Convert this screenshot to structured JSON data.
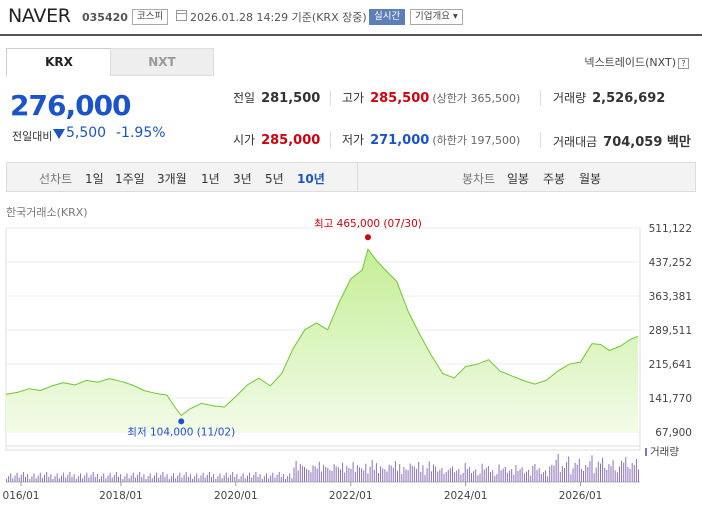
{
  "header": {
    "name": "NAVER",
    "code": "035420",
    "market_badge": "코스피",
    "datetime": "2026.01.28 14:29 기준(KRX 장중)",
    "live_badge": "실시간",
    "corp_badge": "기업개요"
  },
  "tabs": [
    {
      "label": "KRX",
      "active": true
    },
    {
      "label": "NXT",
      "active": false
    }
  ],
  "nxt_link": "넥스트레이드(NXT)",
  "quote": {
    "price": "276,000",
    "change_label": "전일대비",
    "change": "5,500",
    "change_pct": "-1.95%",
    "direction": "down"
  },
  "stats": {
    "prev_close": {
      "label": "전일",
      "value": "281,500"
    },
    "high": {
      "label": "고가",
      "value": "285,500",
      "sub": "(상한가 365,500)"
    },
    "volume": {
      "label": "거래량",
      "value": "2,526,692"
    },
    "open": {
      "label": "시가",
      "value": "285,000"
    },
    "low": {
      "label": "저가",
      "value": "271,000",
      "sub": "(하한가 197,500)"
    },
    "amount": {
      "label": "거래대금",
      "value": "704,059 백만"
    }
  },
  "toolbar": {
    "line_label": "선차트",
    "periods": [
      "1일",
      "1주일",
      "3개월",
      "1년",
      "3년",
      "5년",
      "10년"
    ],
    "selected_period": "10년",
    "candle_label": "봉차트",
    "candle_periods": [
      "일봉",
      "주봉",
      "월봉"
    ]
  },
  "exchange_label": "한국거래소(KRX)",
  "chart_data": {
    "type": "area",
    "y_ticks": [
      "511,122",
      "437,252",
      "363,381",
      "289,511",
      "215,641",
      "141,770",
      "67,900"
    ],
    "y_range": [
      67900,
      511122
    ],
    "x_ticks": [
      "016/01",
      "2018/01",
      "2020/01",
      "2022/01",
      "2024/01",
      "2026/01"
    ],
    "volume_label": "거래량",
    "high_annotation": {
      "label": "최고 465,000 (07/30)",
      "value": 465000
    },
    "low_annotation": {
      "label": "최저 104,000 (11/02)",
      "value": 104000
    },
    "colors": {
      "line": "#6dc92f",
      "fill_top": "#c4ee96",
      "fill_bottom": "#f2fbe8",
      "volume": "#8b72b8",
      "high": "#d1000e",
      "low": "#1a54c8"
    },
    "series": [
      {
        "t": 0.0,
        "v": 150000
      },
      {
        "t": 0.2,
        "v": 154000
      },
      {
        "t": 0.4,
        "v": 162000
      },
      {
        "t": 0.6,
        "v": 158000
      },
      {
        "t": 0.8,
        "v": 168000
      },
      {
        "t": 1.0,
        "v": 175000
      },
      {
        "t": 1.2,
        "v": 170000
      },
      {
        "t": 1.4,
        "v": 180000
      },
      {
        "t": 1.6,
        "v": 176000
      },
      {
        "t": 1.8,
        "v": 184000
      },
      {
        "t": 2.0,
        "v": 178000
      },
      {
        "t": 2.2,
        "v": 170000
      },
      {
        "t": 2.4,
        "v": 158000
      },
      {
        "t": 2.6,
        "v": 152000
      },
      {
        "t": 2.8,
        "v": 148000
      },
      {
        "t": 2.95,
        "v": 120000
      },
      {
        "t": 3.05,
        "v": 104000
      },
      {
        "t": 3.2,
        "v": 118000
      },
      {
        "t": 3.4,
        "v": 130000
      },
      {
        "t": 3.6,
        "v": 125000
      },
      {
        "t": 3.8,
        "v": 122000
      },
      {
        "t": 4.0,
        "v": 145000
      },
      {
        "t": 4.2,
        "v": 170000
      },
      {
        "t": 4.4,
        "v": 185000
      },
      {
        "t": 4.6,
        "v": 168000
      },
      {
        "t": 4.8,
        "v": 195000
      },
      {
        "t": 5.0,
        "v": 250000
      },
      {
        "t": 5.2,
        "v": 290000
      },
      {
        "t": 5.4,
        "v": 305000
      },
      {
        "t": 5.6,
        "v": 290000
      },
      {
        "t": 5.8,
        "v": 350000
      },
      {
        "t": 6.0,
        "v": 400000
      },
      {
        "t": 6.2,
        "v": 420000
      },
      {
        "t": 6.3,
        "v": 465000
      },
      {
        "t": 6.45,
        "v": 440000
      },
      {
        "t": 6.6,
        "v": 420000
      },
      {
        "t": 6.8,
        "v": 395000
      },
      {
        "t": 7.0,
        "v": 330000
      },
      {
        "t": 7.2,
        "v": 280000
      },
      {
        "t": 7.4,
        "v": 235000
      },
      {
        "t": 7.6,
        "v": 195000
      },
      {
        "t": 7.8,
        "v": 185000
      },
      {
        "t": 8.0,
        "v": 210000
      },
      {
        "t": 8.2,
        "v": 215000
      },
      {
        "t": 8.4,
        "v": 225000
      },
      {
        "t": 8.6,
        "v": 200000
      },
      {
        "t": 8.8,
        "v": 190000
      },
      {
        "t": 9.0,
        "v": 180000
      },
      {
        "t": 9.2,
        "v": 172000
      },
      {
        "t": 9.4,
        "v": 180000
      },
      {
        "t": 9.6,
        "v": 200000
      },
      {
        "t": 9.8,
        "v": 215000
      },
      {
        "t": 10.0,
        "v": 220000
      },
      {
        "t": 10.2,
        "v": 260000
      },
      {
        "t": 10.35,
        "v": 258000
      },
      {
        "t": 10.5,
        "v": 245000
      },
      {
        "t": 10.7,
        "v": 255000
      },
      {
        "t": 10.85,
        "v": 268000
      },
      {
        "t": 11.0,
        "v": 276000
      }
    ],
    "x_start_tick_t": 0.0,
    "t_per_two_years": 2.0
  }
}
